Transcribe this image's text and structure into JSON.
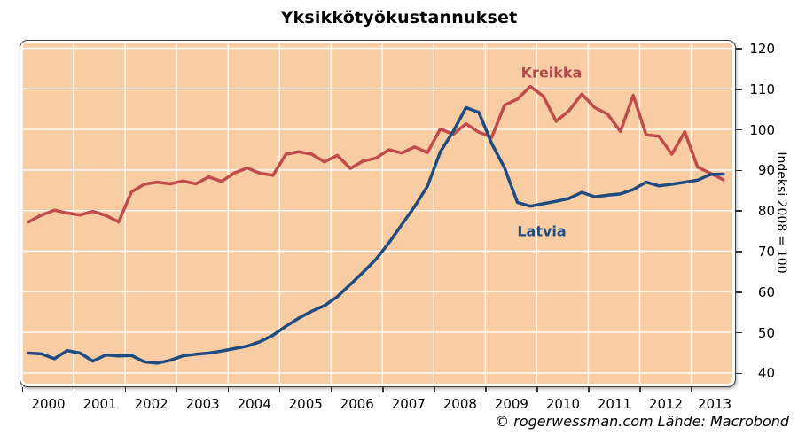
{
  "title": "Yksikkötyökustannukset",
  "footer": {
    "credit": "© rogerwessman.com Lähde: Macrobond"
  },
  "chart_data": {
    "type": "line",
    "title": "Yksikkötyökustannukset",
    "grid": true,
    "plot_bg": "#f9cda4",
    "grid_color": "#ffffff",
    "frequency": "quarterly",
    "x_start": 2000.125,
    "x_step": 0.25,
    "x_axis": {
      "years": [
        2000,
        2001,
        2002,
        2003,
        2004,
        2005,
        2006,
        2007,
        2008,
        2009,
        2010,
        2011,
        2012,
        2013
      ]
    },
    "y_axis": {
      "title": "Indeksi 2008 = 100",
      "side": "right",
      "min": 40,
      "max": 120,
      "ticks": [
        40,
        50,
        60,
        70,
        80,
        90,
        100,
        110,
        120
      ]
    },
    "legend": "inline-labels",
    "series": [
      {
        "name": "Kreikka",
        "color": "#bf4c49",
        "label_color": "#b2494d",
        "label_pos": {
          "x": 622,
          "y": 82
        },
        "values": [
          77.2,
          78.9,
          80.1,
          79.4,
          78.9,
          79.8,
          78.8,
          77.2,
          84.6,
          86.5,
          87.0,
          86.6,
          87.3,
          86.6,
          88.3,
          87.2,
          89.3,
          90.5,
          89.2,
          88.7,
          93.9,
          94.5,
          93.9,
          92.0,
          93.6,
          90.4,
          92.2,
          92.9,
          95.0,
          94.2,
          95.7,
          94.3,
          100.1,
          98.8,
          101.4,
          99.3,
          98.1,
          106.0,
          107.5,
          110.6,
          108.2,
          102.0,
          104.6,
          108.7,
          105.4,
          103.8,
          99.5,
          108.4,
          98.7,
          98.3,
          93.9,
          99.4,
          90.7,
          89.2,
          87.6
        ]
      },
      {
        "name": "Latvia",
        "color": "#1f4c80",
        "label_color": "#1f4c80",
        "label_pos": {
          "x": 611,
          "y": 261
        },
        "values": [
          44.9,
          44.7,
          43.5,
          45.5,
          44.9,
          42.9,
          44.4,
          44.2,
          44.3,
          42.7,
          42.4,
          43.1,
          44.2,
          44.6,
          44.9,
          45.4,
          46.0,
          46.6,
          47.7,
          49.3,
          51.5,
          53.5,
          55.2,
          56.6,
          58.8,
          61.8,
          64.8,
          68.0,
          72.0,
          76.5,
          81.0,
          86.0,
          94.5,
          99.5,
          105.4,
          104.2,
          96.5,
          90.5,
          82.0,
          81.1,
          81.7,
          82.3,
          83.0,
          84.5,
          83.4,
          83.8,
          84.1,
          85.2,
          87.0,
          86.1,
          86.5,
          87.0,
          87.5,
          88.9,
          89.0
        ]
      }
    ]
  }
}
